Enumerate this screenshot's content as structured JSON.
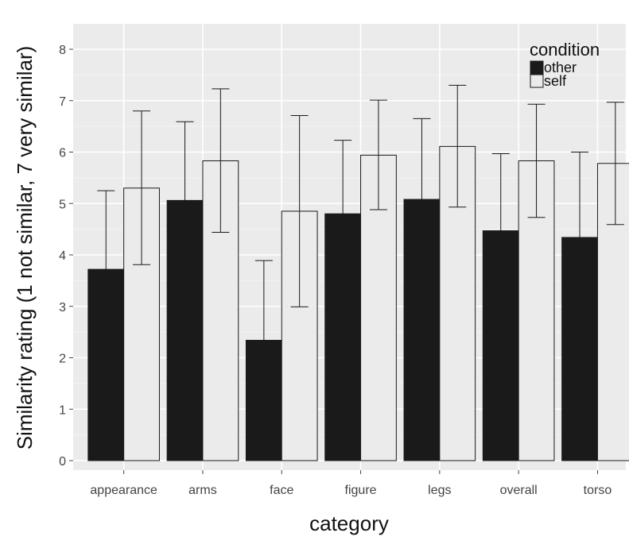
{
  "chart_data": {
    "type": "bar",
    "xlabel": "category",
    "ylabel": "Similarity rating (1 not similar, 7 very similar)",
    "categories": [
      "appearance",
      "arms",
      "face",
      "figure",
      "legs",
      "overall",
      "torso"
    ],
    "ylim": [
      0,
      8
    ],
    "yticks": [
      "0",
      "1",
      "2",
      "3",
      "4",
      "5",
      "6",
      "7",
      "8"
    ],
    "grid": true,
    "legend": {
      "title": "condition",
      "placement": "top-right",
      "entries": [
        "other",
        "self"
      ]
    },
    "series": [
      {
        "name": "other",
        "color": "#1a1a1a",
        "values": [
          3.72,
          5.06,
          2.34,
          4.8,
          5.08,
          4.47,
          4.34
        ],
        "error_low": [
          2.19,
          3.53,
          0.79,
          3.37,
          3.51,
          2.98,
          2.68
        ],
        "error_high": [
          5.25,
          6.59,
          3.89,
          6.23,
          6.65,
          5.97,
          6.0
        ]
      },
      {
        "name": "self",
        "color": "#ebebeb",
        "values": [
          5.3,
          5.83,
          4.85,
          5.94,
          6.11,
          5.83,
          5.78
        ],
        "error_low": [
          3.81,
          4.44,
          2.99,
          4.88,
          4.93,
          4.73,
          4.59
        ],
        "error_high": [
          6.8,
          7.23,
          6.71,
          7.01,
          7.3,
          6.93,
          6.97
        ]
      }
    ]
  },
  "colors": {
    "panel_background": "#ebebeb",
    "grid_major": "#ffffff",
    "other_fill": "#1a1a1a",
    "self_fill": "#ebebeb"
  }
}
